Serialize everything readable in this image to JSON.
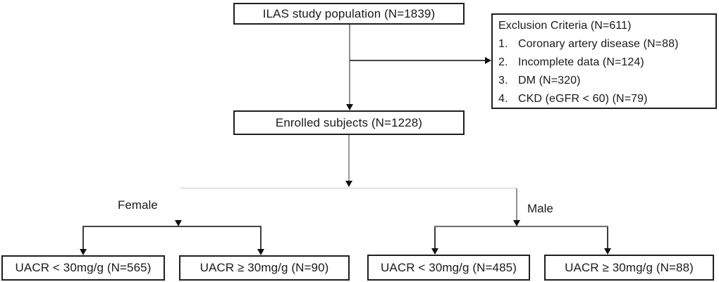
{
  "colors": {
    "box_border": "#1f1f1f",
    "text": "#1a1a1a",
    "connector_gray": "#8a8a8a",
    "connector_light": "#c9c9c9",
    "connector_dark": "#3d3d3d",
    "background": "#ffffff"
  },
  "flow": {
    "top": "ILAS study population (N=1839)",
    "enrolled": "Enrolled subjects (N=1228)",
    "exclusion": {
      "title": "Exclusion Criteria (N=611)",
      "items": [
        {
          "num": "1.",
          "text": "Coronary artery disease (N=88)"
        },
        {
          "num": "2.",
          "text": "Incomplete data (N=124)"
        },
        {
          "num": "3.",
          "text": "DM (N=320)"
        },
        {
          "num": "4.",
          "text": "CKD (eGFR < 60) (N=79)"
        }
      ]
    },
    "branches": {
      "female": "Female",
      "male": "Male"
    },
    "leaves": [
      {
        "label": "UACR < 30mg/g (N=565)"
      },
      {
        "label": "UACR ≥ 30mg/g (N=90)"
      },
      {
        "label": "UACR < 30mg/g (N=485)"
      },
      {
        "label": "UACR ≥ 30mg/g (N=88)"
      }
    ]
  }
}
